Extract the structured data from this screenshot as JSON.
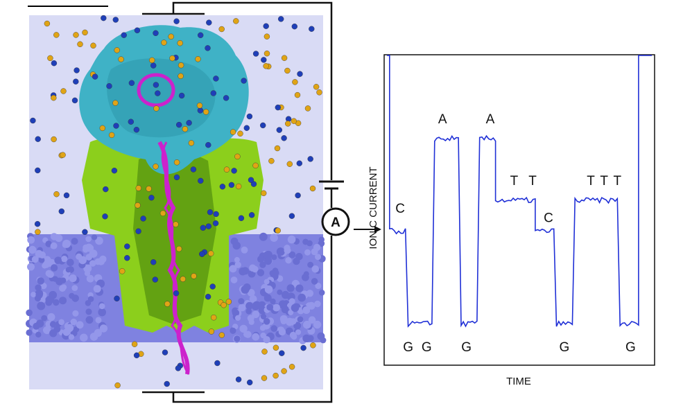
{
  "figure": {
    "ammeter_symbol": "A",
    "chart_axis_y_label": "IONIC CURRENT",
    "chart_axis_x_label": "TIME",
    "colors": {
      "membrane": "#7f82e0",
      "protein_cap": "#3fb2c6",
      "pore": "#8ccf1c",
      "dna": "#cc22cc",
      "ion_blue": "#1f3fb8",
      "ion_gold": "#e0a416",
      "box_bg": "#d9dbf5",
      "trace": "#1f2fd6"
    }
  },
  "chart_data": {
    "type": "line",
    "xlabel": "TIME",
    "ylabel": "IONIC CURRENT",
    "ylim": [
      0,
      1
    ],
    "series": [
      {
        "segments": [
          {
            "x0": 0.0,
            "x1": 0.01,
            "y": 1.0
          },
          {
            "x0": 0.01,
            "x1": 0.07,
            "y": 0.43,
            "label": "C"
          },
          {
            "x0": 0.08,
            "x1": 0.17,
            "y": 0.13,
            "label": "G G"
          },
          {
            "x0": 0.18,
            "x1": 0.27,
            "y": 0.73,
            "label": "A"
          },
          {
            "x0": 0.28,
            "x1": 0.34,
            "y": 0.13,
            "label": "G"
          },
          {
            "x0": 0.35,
            "x1": 0.41,
            "y": 0.73,
            "label": "A"
          },
          {
            "x0": 0.41,
            "x1": 0.56,
            "y": 0.53,
            "label": "T T"
          },
          {
            "x0": 0.56,
            "x1": 0.63,
            "y": 0.43,
            "label": "C"
          },
          {
            "x0": 0.64,
            "x1": 0.7,
            "y": 0.13,
            "label": "G"
          },
          {
            "x0": 0.71,
            "x1": 0.87,
            "y": 0.53,
            "label": "T T T"
          },
          {
            "x0": 0.88,
            "x1": 0.95,
            "y": 0.13,
            "label": "G"
          },
          {
            "x0": 0.95,
            "x1": 1.0,
            "y": 1.0
          }
        ]
      }
    ],
    "labels": [
      {
        "text": "C",
        "x": 0.05,
        "y": 0.49
      },
      {
        "text": "G",
        "x": 0.08,
        "y": 0.04
      },
      {
        "text": "G",
        "x": 0.15,
        "y": 0.04
      },
      {
        "text": "A",
        "x": 0.21,
        "y": 0.78
      },
      {
        "text": "G",
        "x": 0.3,
        "y": 0.04
      },
      {
        "text": "A",
        "x": 0.39,
        "y": 0.78
      },
      {
        "text": "T",
        "x": 0.48,
        "y": 0.58
      },
      {
        "text": "T",
        "x": 0.55,
        "y": 0.58
      },
      {
        "text": "C",
        "x": 0.61,
        "y": 0.46
      },
      {
        "text": "G",
        "x": 0.67,
        "y": 0.04
      },
      {
        "text": "T",
        "x": 0.77,
        "y": 0.58
      },
      {
        "text": "T",
        "x": 0.82,
        "y": 0.58
      },
      {
        "text": "T",
        "x": 0.87,
        "y": 0.58
      },
      {
        "text": "G",
        "x": 0.92,
        "y": 0.04
      }
    ]
  }
}
